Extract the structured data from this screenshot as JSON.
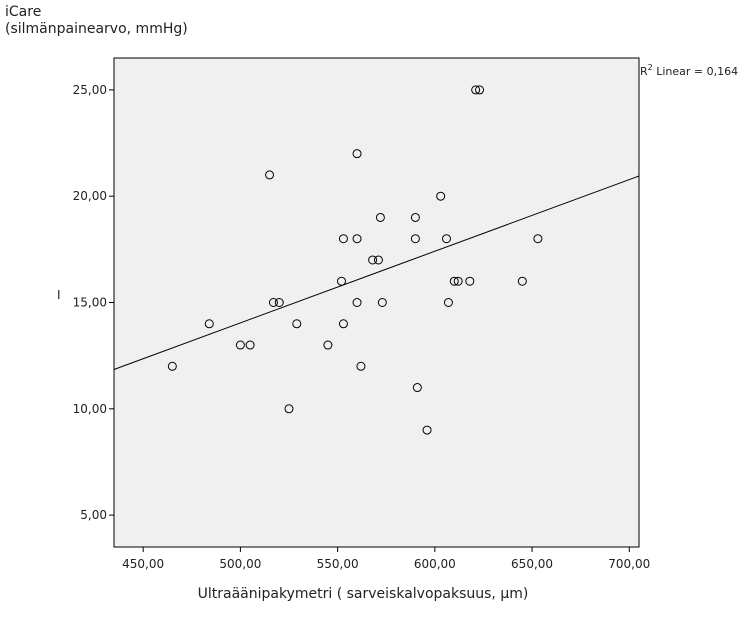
{
  "chart_data": {
    "type": "scatter",
    "title": "",
    "ylabel_line1": "iCare",
    "ylabel_line2": "(silmänpainearvo, mmHg)",
    "xlabel": "Ultraäänipakymetri ( sarveiskalvopaksuus, µm)",
    "side_label": "I",
    "fit_label_prefix": "R",
    "fit_label_sup": "2",
    "fit_label_suffix": " Linear = 0,164",
    "xlim": [
      435,
      705
    ],
    "ylim": [
      3.5,
      26.5
    ],
    "x_ticks": [
      450,
      500,
      550,
      600,
      650,
      700
    ],
    "x_tick_labels": [
      "450,00",
      "500,00",
      "550,00",
      "600,00",
      "650,00",
      "700,00"
    ],
    "y_ticks": [
      5,
      10,
      15,
      20,
      25
    ],
    "y_tick_labels": [
      "5,00",
      "10,00",
      "15,00",
      "20,00",
      "25,00"
    ],
    "fit_line": {
      "x": [
        435,
        705
      ],
      "y": [
        11.85,
        20.95
      ]
    },
    "points": [
      {
        "x": 465,
        "y": 12
      },
      {
        "x": 484,
        "y": 14
      },
      {
        "x": 500,
        "y": 13
      },
      {
        "x": 505,
        "y": 13
      },
      {
        "x": 515,
        "y": 21
      },
      {
        "x": 517,
        "y": 15
      },
      {
        "x": 520,
        "y": 15
      },
      {
        "x": 525,
        "y": 10
      },
      {
        "x": 529,
        "y": 14
      },
      {
        "x": 545,
        "y": 13
      },
      {
        "x": 552,
        "y": 16
      },
      {
        "x": 553,
        "y": 14
      },
      {
        "x": 553,
        "y": 18
      },
      {
        "x": 560,
        "y": 22
      },
      {
        "x": 560,
        "y": 18
      },
      {
        "x": 560,
        "y": 15
      },
      {
        "x": 562,
        "y": 12
      },
      {
        "x": 568,
        "y": 17
      },
      {
        "x": 571,
        "y": 17
      },
      {
        "x": 572,
        "y": 19
      },
      {
        "x": 573,
        "y": 15
      },
      {
        "x": 590,
        "y": 19
      },
      {
        "x": 590,
        "y": 18
      },
      {
        "x": 591,
        "y": 11
      },
      {
        "x": 596,
        "y": 9
      },
      {
        "x": 603,
        "y": 20
      },
      {
        "x": 606,
        "y": 18
      },
      {
        "x": 607,
        "y": 15
      },
      {
        "x": 610,
        "y": 16
      },
      {
        "x": 612,
        "y": 16
      },
      {
        "x": 618,
        "y": 16
      },
      {
        "x": 621,
        "y": 25
      },
      {
        "x": 623,
        "y": 25
      },
      {
        "x": 645,
        "y": 16
      },
      {
        "x": 653,
        "y": 18
      }
    ],
    "grid": false,
    "plot_bg": "#f0f0f0",
    "marker_color": "#000000"
  }
}
